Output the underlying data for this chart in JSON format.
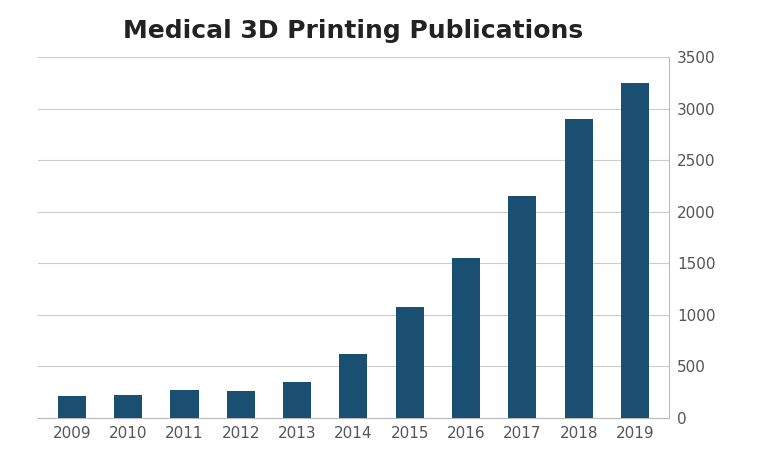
{
  "years": [
    "2009",
    "2010",
    "2011",
    "2012",
    "2013",
    "2014",
    "2015",
    "2016",
    "2017",
    "2018",
    "2019"
  ],
  "values": [
    210,
    220,
    270,
    265,
    350,
    620,
    1080,
    1550,
    2150,
    2900,
    3250
  ],
  "bar_color": "#1a4f72",
  "title": "Medical 3D Printing Publications",
  "title_fontsize": 18,
  "title_fontweight": "bold",
  "ylim": [
    0,
    3500
  ],
  "yticks": [
    0,
    500,
    1000,
    1500,
    2000,
    2500,
    3000,
    3500
  ],
  "background_color": "#ffffff",
  "grid_color": "#cccccc",
  "tick_label_fontsize": 11,
  "bar_width": 0.5,
  "title_color": "#222222",
  "tick_color": "#555555",
  "spine_color": "#bbbbbb"
}
